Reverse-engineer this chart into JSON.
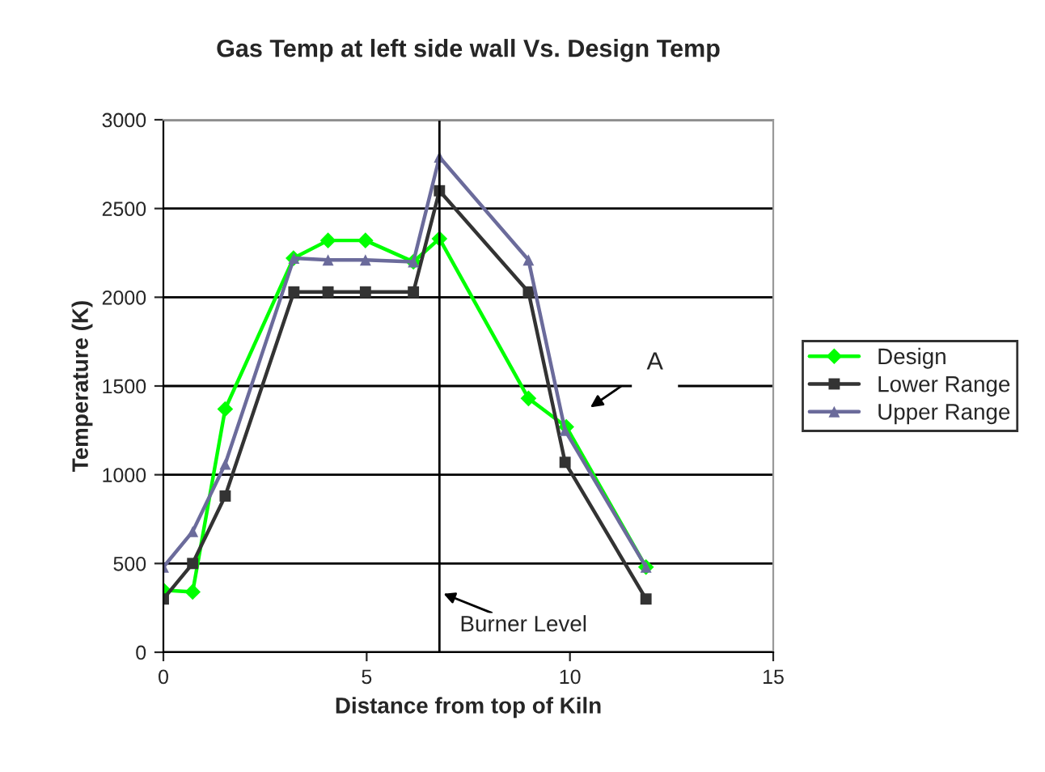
{
  "chart_data": {
    "type": "line",
    "title": "Gas Temp at left side wall Vs. Design Temp",
    "xlabel": "Distance from top of Kiln",
    "ylabel": "Temperature (K)",
    "xlim": [
      0,
      15
    ],
    "xticks": [
      0,
      5,
      10,
      15
    ],
    "ylim": [
      0,
      3000
    ],
    "yticks": [
      0,
      500,
      1000,
      1500,
      2000,
      2500,
      3000
    ],
    "grid": "y",
    "legend": "right",
    "series": [
      {
        "name": "Design",
        "color": "#00ff00",
        "marker": "diamond",
        "x": [
          0,
          0.72,
          1.52,
          3.2,
          4.05,
          4.97,
          6.15,
          6.79,
          8.98,
          9.91,
          11.87
        ],
        "values": [
          350,
          340,
          1370,
          2220,
          2320,
          2320,
          2200,
          2330,
          1430,
          1270,
          480
        ]
      },
      {
        "name": "Lower Range",
        "color": "#333333",
        "marker": "square",
        "x": [
          0,
          0.72,
          1.52,
          3.21,
          4.05,
          4.97,
          6.15,
          6.79,
          8.98,
          9.88,
          11.87
        ],
        "values": [
          300,
          500,
          880,
          2030,
          2030,
          2030,
          2030,
          2600,
          2030,
          1070,
          300
        ]
      },
      {
        "name": "Upper Range",
        "color": "#6b6b9b",
        "marker": "triangle",
        "x": [
          0,
          0.72,
          1.52,
          3.21,
          4.05,
          4.97,
          6.15,
          6.79,
          8.98,
          9.88,
          11.87
        ],
        "values": [
          480,
          680,
          1060,
          2220,
          2210,
          2210,
          2200,
          2790,
          2210,
          1250,
          480
        ]
      }
    ],
    "ref_lines": [
      {
        "axis": "x",
        "value": 6.79,
        "label": "Burner Level",
        "color": "#000000"
      }
    ],
    "annotations": [
      "A"
    ]
  }
}
